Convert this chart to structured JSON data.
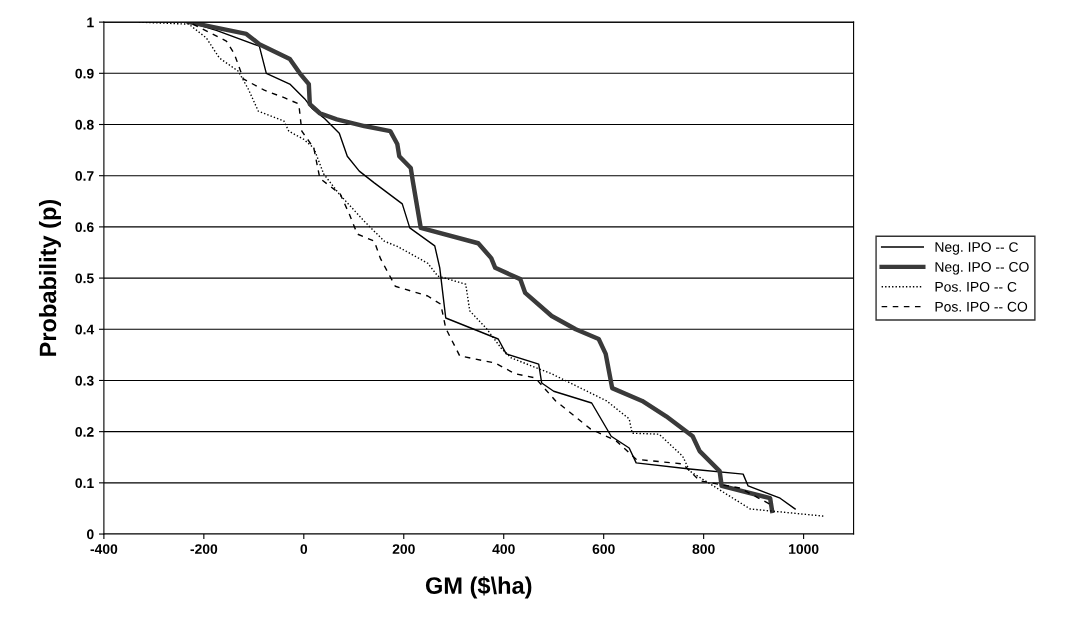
{
  "chart_data": {
    "type": "line",
    "xlabel": "GM ($\\ha)",
    "ylabel": "Probability (p)",
    "xlim": [
      -400,
      1100
    ],
    "xticks": [
      -400,
      -200,
      0,
      200,
      400,
      600,
      800,
      1000
    ],
    "ylim": [
      0,
      1
    ],
    "yticks": [
      0,
      0.1,
      0.2,
      0.3,
      0.4,
      0.5,
      0.6,
      0.7,
      0.8,
      0.9,
      1
    ],
    "grid": "y",
    "legend": "right",
    "marker": "none",
    "series": [
      {
        "name": "Neg. IPO -- C",
        "color": "#000000",
        "line_style": "solid",
        "x": [
          -230,
          -175,
          -89,
          -75,
          -28,
          2,
          16,
          40,
          71,
          87,
          111,
          141,
          197,
          212,
          262,
          272,
          284,
          389,
          405,
          470,
          476,
          500,
          576,
          615,
          651,
          665,
          772,
          879,
          889,
          953,
          983
        ],
        "values": [
          1.0,
          0.984,
          0.953,
          0.9,
          0.879,
          0.85,
          0.832,
          0.813,
          0.783,
          0.738,
          0.709,
          0.686,
          0.645,
          0.598,
          0.563,
          0.52,
          0.422,
          0.381,
          0.352,
          0.332,
          0.295,
          0.279,
          0.256,
          0.191,
          0.168,
          0.139,
          0.127,
          0.117,
          0.094,
          0.07,
          0.049
        ]
      },
      {
        "name": "Neg. IPO -- CO",
        "color": "#3a3a3a",
        "line_style": "solid",
        "x": [
          -230,
          -115,
          -89,
          -28,
          -8,
          10,
          12,
          32,
          66,
          121,
          173,
          187,
          191,
          214,
          218,
          234,
          349,
          375,
          383,
          433,
          443,
          496,
          544,
          590,
          604,
          617,
          677,
          725,
          778,
          792,
          832,
          836,
          933,
          937
        ],
        "values": [
          1.0,
          0.977,
          0.957,
          0.928,
          0.9,
          0.879,
          0.84,
          0.822,
          0.81,
          0.797,
          0.787,
          0.762,
          0.738,
          0.715,
          0.69,
          0.598,
          0.568,
          0.539,
          0.52,
          0.498,
          0.471,
          0.426,
          0.4,
          0.381,
          0.352,
          0.285,
          0.26,
          0.23,
          0.191,
          0.162,
          0.123,
          0.094,
          0.07,
          0.045
        ]
      },
      {
        "name": "Pos. IPO -- C",
        "color": "#000000",
        "line_style": "dotted",
        "x": [
          -330,
          -230,
          -195,
          -169,
          -131,
          -111,
          -91,
          -40,
          -30,
          0,
          20,
          40,
          71,
          121,
          161,
          187,
          248,
          268,
          324,
          332,
          365,
          395,
          415,
          496,
          606,
          651,
          657,
          711,
          758,
          772,
          893,
          1040
        ],
        "values": [
          1.0,
          0.996,
          0.969,
          0.93,
          0.904,
          0.869,
          0.826,
          0.807,
          0.787,
          0.771,
          0.754,
          0.703,
          0.664,
          0.611,
          0.572,
          0.562,
          0.529,
          0.504,
          0.488,
          0.436,
          0.402,
          0.363,
          0.344,
          0.313,
          0.26,
          0.225,
          0.197,
          0.195,
          0.152,
          0.123,
          0.049,
          0.035
        ]
      },
      {
        "name": "Pos. IPO -- CO",
        "color": "#000000",
        "line_style": "dashed",
        "x": [
          -222,
          -155,
          -139,
          -121,
          -79,
          -38,
          -10,
          -4,
          20,
          32,
          73,
          91,
          107,
          141,
          153,
          183,
          248,
          274,
          284,
          312,
          383,
          423,
          463,
          504,
          574,
          625,
          665,
          758,
          792,
          872,
          939
        ],
        "values": [
          0.996,
          0.963,
          0.938,
          0.889,
          0.867,
          0.852,
          0.84,
          0.787,
          0.754,
          0.695,
          0.664,
          0.625,
          0.586,
          0.572,
          0.539,
          0.484,
          0.465,
          0.449,
          0.402,
          0.348,
          0.334,
          0.313,
          0.305,
          0.26,
          0.205,
          0.182,
          0.146,
          0.137,
          0.104,
          0.09,
          0.055
        ]
      }
    ]
  }
}
